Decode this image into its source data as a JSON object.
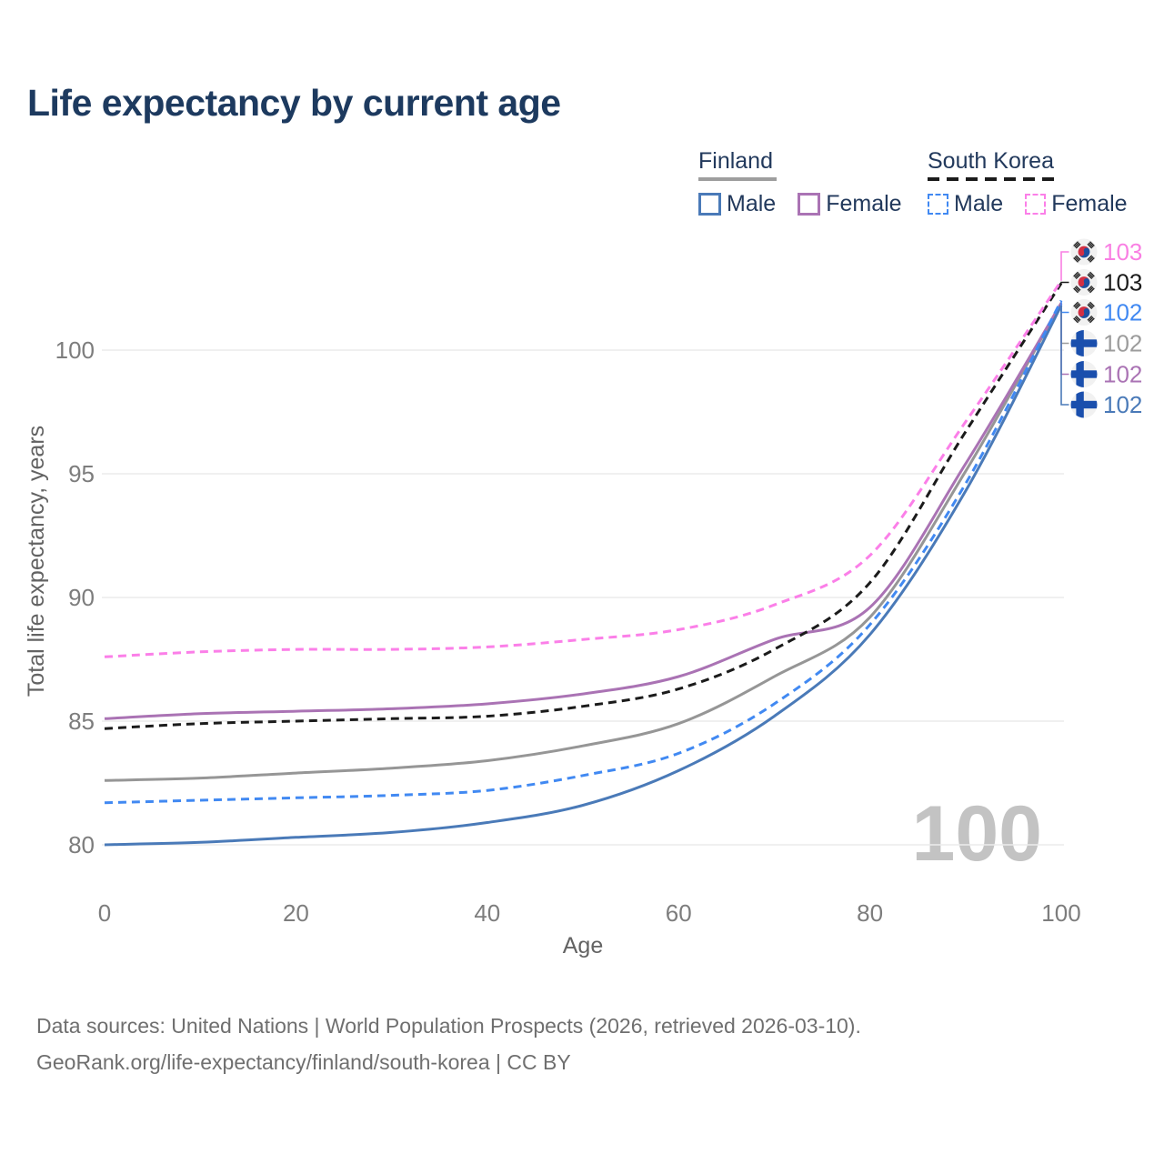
{
  "title": "Life expectancy by current age",
  "legend": {
    "finland": {
      "label": "Finland",
      "male": "Male",
      "female": "Female"
    },
    "south_korea": {
      "label": "South Korea",
      "male": "Male",
      "female": "Female"
    }
  },
  "footer": {
    "line1": "Data sources: United Nations | World Population Prospects (2026, retrieved 2026-03-10).",
    "line2": "GeoRank.org/life-expectancy/finland/south-korea | CC BY"
  },
  "colors": {
    "title_text": "#1d3a5f",
    "legend_text": "#22395c",
    "finland_underline": "#9e9e9e",
    "south_korea_underline": "#1b1b1b",
    "finland_male": "#4a7ab8",
    "finland_female": "#aa73b4",
    "finland_both": "#969696",
    "south_korea_male": "#4189f2",
    "south_korea_female": "#fb7fe8",
    "south_korea_both": "#1b1b1b",
    "grid": "#ececec",
    "tick_text": "#7d7d7d",
    "watermark": "#c3c3c3",
    "footer_text": "#6f6f6f",
    "flag_finland_blue": "#1a4fad",
    "flag_korea_red": "#d22f43",
    "flag_korea_blue": "#1e50a0"
  },
  "chart_data": {
    "type": "line",
    "title": "Life expectancy by current age",
    "xlabel": "Age",
    "ylabel": "Total life expectancy, years",
    "xlim": [
      0,
      100
    ],
    "ylim": [
      78,
      105
    ],
    "xticks": [
      0,
      20,
      40,
      60,
      80,
      100
    ],
    "yticks": [
      80,
      85,
      90,
      95,
      100
    ],
    "grid": "horizontal-only",
    "legend_position": "top-right",
    "watermark": "100",
    "x": [
      0,
      10,
      20,
      30,
      40,
      50,
      60,
      70,
      80,
      90,
      100
    ],
    "series": [
      {
        "id": "finland-both",
        "name": "Finland Both sexes",
        "country": "Finland",
        "group": "Both sexes",
        "style": "solid",
        "color": "#969696",
        "values": [
          82.6,
          82.7,
          82.9,
          83.1,
          83.4,
          84.0,
          84.9,
          86.8,
          89.2,
          95.1,
          101.9
        ]
      },
      {
        "id": "finland-female",
        "name": "Finland Female",
        "country": "Finland",
        "group": "Female",
        "style": "solid",
        "color": "#aa73b4",
        "values": [
          85.1,
          85.3,
          85.4,
          85.5,
          85.7,
          86.1,
          86.8,
          88.3,
          89.6,
          95.4,
          101.9
        ]
      },
      {
        "id": "finland-male",
        "name": "Finland Male",
        "country": "Finland",
        "group": "Male",
        "style": "solid",
        "color": "#4a7ab8",
        "values": [
          80.0,
          80.1,
          80.3,
          80.5,
          80.9,
          81.6,
          83.0,
          85.2,
          88.5,
          94.3,
          101.8
        ]
      },
      {
        "id": "south-korea-both",
        "name": "South Korea Both sexes",
        "country": "South Korea",
        "group": "Both sexes",
        "style": "dashed",
        "color": "#1b1b1b",
        "values": [
          84.7,
          84.9,
          85.0,
          85.1,
          85.2,
          85.6,
          86.3,
          87.9,
          90.6,
          96.7,
          102.7
        ]
      },
      {
        "id": "south-korea-male",
        "name": "South Korea Male",
        "country": "South Korea",
        "group": "Male",
        "style": "dashed",
        "color": "#4189f2",
        "values": [
          81.7,
          81.8,
          81.9,
          82.0,
          82.2,
          82.8,
          83.7,
          85.7,
          88.9,
          94.6,
          102.0
        ]
      },
      {
        "id": "south-korea-female",
        "name": "South Korea Female",
        "country": "South Korea",
        "group": "Female",
        "style": "dashed",
        "color": "#fb7fe8",
        "values": [
          87.6,
          87.8,
          87.9,
          87.9,
          88.0,
          88.3,
          88.7,
          89.7,
          91.7,
          97.1,
          102.8
        ]
      }
    ],
    "end_labels": [
      {
        "series": "South Korea Female",
        "flag": "kr",
        "value": "103",
        "color": "#f97fe3"
      },
      {
        "series": "South Korea Both sexes",
        "flag": "kr",
        "value": "103",
        "color": "#1b1b1b"
      },
      {
        "series": "South Korea Male",
        "flag": "kr",
        "value": "102",
        "color": "#4189f2"
      },
      {
        "series": "Finland Both sexes",
        "flag": "fi",
        "value": "102",
        "color": "#9c9c9c"
      },
      {
        "series": "Finland Female",
        "flag": "fi",
        "value": "102",
        "color": "#aa73b4"
      },
      {
        "series": "Finland Male",
        "flag": "fi",
        "value": "102",
        "color": "#4a7ab8"
      }
    ]
  }
}
